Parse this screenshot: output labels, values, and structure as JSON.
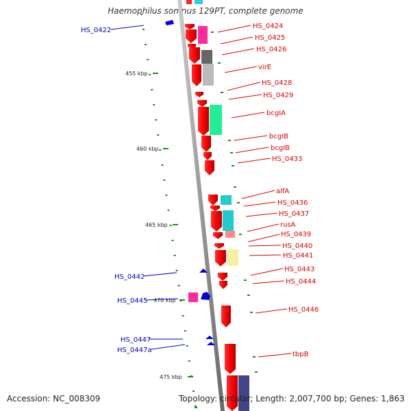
{
  "title": "Haemophilus somnus 129PT, complete genome",
  "footer": {
    "accession": "Accession: NC_008309",
    "topology": "Topology: circular; Length: 2,007,700 bp; Genes: 1,863"
  },
  "ticks": [
    "455 kbp",
    "460 kbp",
    "465 kbp",
    "470 kbp",
    "475 kbp"
  ],
  "forward_genes": [
    "HS_0424",
    "HS_0425",
    "HS_0426",
    "virE",
    "HS_0428",
    "HS_0429",
    "bcgIA",
    "bcgIB",
    "bcgIB",
    "HS_0433",
    "alfA",
    "HS_0436",
    "HS_0437",
    "rusA",
    "HS_0439",
    "HS_0440",
    "HS_0441",
    "HS_0443",
    "HS_0444",
    "HS_0446",
    "tbpB"
  ],
  "reverse_genes": [
    "HS_0422",
    "HS_0442",
    "HS_0445",
    "HS_0447",
    "HS_0447a"
  ],
  "colors": {
    "forward": "#dd0000",
    "reverse": "#0000cc",
    "backbone": "#888888",
    "dots": "#228822"
  }
}
